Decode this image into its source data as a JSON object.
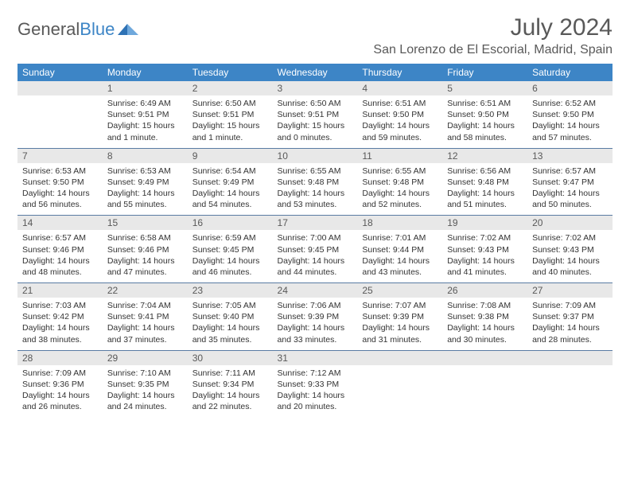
{
  "logo": {
    "text1": "General",
    "text2": "Blue"
  },
  "title": "July 2024",
  "location": "San Lorenzo de El Escorial, Madrid, Spain",
  "weekdays": [
    "Sunday",
    "Monday",
    "Tuesday",
    "Wednesday",
    "Thursday",
    "Friday",
    "Saturday"
  ],
  "colors": {
    "header_bg": "#3d85c6",
    "header_fg": "#ffffff",
    "daynum_bg": "#e8e8e8",
    "border": "#5a7ca3",
    "text": "#333333",
    "muted": "#595959"
  },
  "weeks": [
    [
      {
        "n": "",
        "sunrise": "",
        "sunset": "",
        "daylight": ""
      },
      {
        "n": "1",
        "sunrise": "Sunrise: 6:49 AM",
        "sunset": "Sunset: 9:51 PM",
        "daylight": "Daylight: 15 hours and 1 minute."
      },
      {
        "n": "2",
        "sunrise": "Sunrise: 6:50 AM",
        "sunset": "Sunset: 9:51 PM",
        "daylight": "Daylight: 15 hours and 1 minute."
      },
      {
        "n": "3",
        "sunrise": "Sunrise: 6:50 AM",
        "sunset": "Sunset: 9:51 PM",
        "daylight": "Daylight: 15 hours and 0 minutes."
      },
      {
        "n": "4",
        "sunrise": "Sunrise: 6:51 AM",
        "sunset": "Sunset: 9:50 PM",
        "daylight": "Daylight: 14 hours and 59 minutes."
      },
      {
        "n": "5",
        "sunrise": "Sunrise: 6:51 AM",
        "sunset": "Sunset: 9:50 PM",
        "daylight": "Daylight: 14 hours and 58 minutes."
      },
      {
        "n": "6",
        "sunrise": "Sunrise: 6:52 AM",
        "sunset": "Sunset: 9:50 PM",
        "daylight": "Daylight: 14 hours and 57 minutes."
      }
    ],
    [
      {
        "n": "7",
        "sunrise": "Sunrise: 6:53 AM",
        "sunset": "Sunset: 9:50 PM",
        "daylight": "Daylight: 14 hours and 56 minutes."
      },
      {
        "n": "8",
        "sunrise": "Sunrise: 6:53 AM",
        "sunset": "Sunset: 9:49 PM",
        "daylight": "Daylight: 14 hours and 55 minutes."
      },
      {
        "n": "9",
        "sunrise": "Sunrise: 6:54 AM",
        "sunset": "Sunset: 9:49 PM",
        "daylight": "Daylight: 14 hours and 54 minutes."
      },
      {
        "n": "10",
        "sunrise": "Sunrise: 6:55 AM",
        "sunset": "Sunset: 9:48 PM",
        "daylight": "Daylight: 14 hours and 53 minutes."
      },
      {
        "n": "11",
        "sunrise": "Sunrise: 6:55 AM",
        "sunset": "Sunset: 9:48 PM",
        "daylight": "Daylight: 14 hours and 52 minutes."
      },
      {
        "n": "12",
        "sunrise": "Sunrise: 6:56 AM",
        "sunset": "Sunset: 9:48 PM",
        "daylight": "Daylight: 14 hours and 51 minutes."
      },
      {
        "n": "13",
        "sunrise": "Sunrise: 6:57 AM",
        "sunset": "Sunset: 9:47 PM",
        "daylight": "Daylight: 14 hours and 50 minutes."
      }
    ],
    [
      {
        "n": "14",
        "sunrise": "Sunrise: 6:57 AM",
        "sunset": "Sunset: 9:46 PM",
        "daylight": "Daylight: 14 hours and 48 minutes."
      },
      {
        "n": "15",
        "sunrise": "Sunrise: 6:58 AM",
        "sunset": "Sunset: 9:46 PM",
        "daylight": "Daylight: 14 hours and 47 minutes."
      },
      {
        "n": "16",
        "sunrise": "Sunrise: 6:59 AM",
        "sunset": "Sunset: 9:45 PM",
        "daylight": "Daylight: 14 hours and 46 minutes."
      },
      {
        "n": "17",
        "sunrise": "Sunrise: 7:00 AM",
        "sunset": "Sunset: 9:45 PM",
        "daylight": "Daylight: 14 hours and 44 minutes."
      },
      {
        "n": "18",
        "sunrise": "Sunrise: 7:01 AM",
        "sunset": "Sunset: 9:44 PM",
        "daylight": "Daylight: 14 hours and 43 minutes."
      },
      {
        "n": "19",
        "sunrise": "Sunrise: 7:02 AM",
        "sunset": "Sunset: 9:43 PM",
        "daylight": "Daylight: 14 hours and 41 minutes."
      },
      {
        "n": "20",
        "sunrise": "Sunrise: 7:02 AM",
        "sunset": "Sunset: 9:43 PM",
        "daylight": "Daylight: 14 hours and 40 minutes."
      }
    ],
    [
      {
        "n": "21",
        "sunrise": "Sunrise: 7:03 AM",
        "sunset": "Sunset: 9:42 PM",
        "daylight": "Daylight: 14 hours and 38 minutes."
      },
      {
        "n": "22",
        "sunrise": "Sunrise: 7:04 AM",
        "sunset": "Sunset: 9:41 PM",
        "daylight": "Daylight: 14 hours and 37 minutes."
      },
      {
        "n": "23",
        "sunrise": "Sunrise: 7:05 AM",
        "sunset": "Sunset: 9:40 PM",
        "daylight": "Daylight: 14 hours and 35 minutes."
      },
      {
        "n": "24",
        "sunrise": "Sunrise: 7:06 AM",
        "sunset": "Sunset: 9:39 PM",
        "daylight": "Daylight: 14 hours and 33 minutes."
      },
      {
        "n": "25",
        "sunrise": "Sunrise: 7:07 AM",
        "sunset": "Sunset: 9:39 PM",
        "daylight": "Daylight: 14 hours and 31 minutes."
      },
      {
        "n": "26",
        "sunrise": "Sunrise: 7:08 AM",
        "sunset": "Sunset: 9:38 PM",
        "daylight": "Daylight: 14 hours and 30 minutes."
      },
      {
        "n": "27",
        "sunrise": "Sunrise: 7:09 AM",
        "sunset": "Sunset: 9:37 PM",
        "daylight": "Daylight: 14 hours and 28 minutes."
      }
    ],
    [
      {
        "n": "28",
        "sunrise": "Sunrise: 7:09 AM",
        "sunset": "Sunset: 9:36 PM",
        "daylight": "Daylight: 14 hours and 26 minutes."
      },
      {
        "n": "29",
        "sunrise": "Sunrise: 7:10 AM",
        "sunset": "Sunset: 9:35 PM",
        "daylight": "Daylight: 14 hours and 24 minutes."
      },
      {
        "n": "30",
        "sunrise": "Sunrise: 7:11 AM",
        "sunset": "Sunset: 9:34 PM",
        "daylight": "Daylight: 14 hours and 22 minutes."
      },
      {
        "n": "31",
        "sunrise": "Sunrise: 7:12 AM",
        "sunset": "Sunset: 9:33 PM",
        "daylight": "Daylight: 14 hours and 20 minutes."
      },
      {
        "n": "",
        "sunrise": "",
        "sunset": "",
        "daylight": ""
      },
      {
        "n": "",
        "sunrise": "",
        "sunset": "",
        "daylight": ""
      },
      {
        "n": "",
        "sunrise": "",
        "sunset": "",
        "daylight": ""
      }
    ]
  ]
}
